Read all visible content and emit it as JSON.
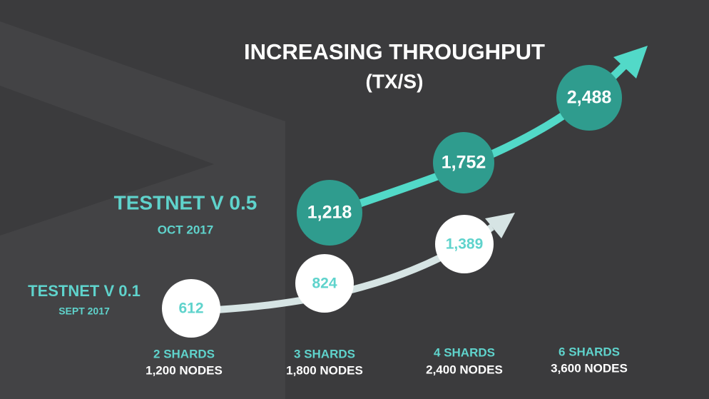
{
  "title": "INCREASING THROUGHPUT",
  "subtitle": "(TX/S)",
  "releases": [
    {
      "name": "TESTNET V 0.1",
      "date": "SEPT 2017",
      "values": [
        "612",
        "824",
        "1,389"
      ]
    },
    {
      "name": "TESTNET V 0.5",
      "date": "OCT 2017",
      "values": [
        "1,218",
        "1,752",
        "2,488"
      ]
    }
  ],
  "configurations": [
    {
      "shards": "2 SHARDS",
      "nodes": "1,200 NODES"
    },
    {
      "shards": "3 SHARDS",
      "nodes": "1,800 NODES"
    },
    {
      "shards": "4 SHARDS",
      "nodes": "2,400 NODES"
    },
    {
      "shards": "6 SHARDS",
      "nodes": "3,600 NODES"
    }
  ]
}
